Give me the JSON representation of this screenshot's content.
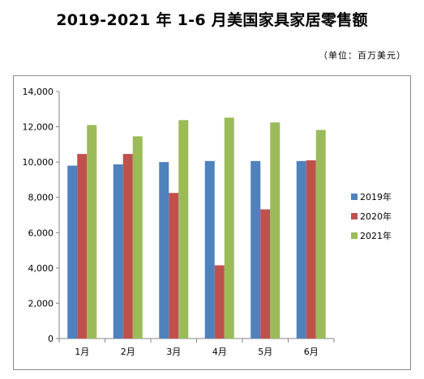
{
  "chart_data": {
    "type": "bar",
    "title": "2019-2021 年 1-6 月美国家具家居零售额",
    "unit_note": "（单位：百万美元）",
    "categories": [
      "1月",
      "2月",
      "3月",
      "4月",
      "5月",
      "6月"
    ],
    "series": [
      {
        "name": "2019年",
        "color": "#4F81BD",
        "values": [
          9800,
          9870,
          10000,
          10060,
          10060,
          10060
        ]
      },
      {
        "name": "2020年",
        "color": "#C0504D",
        "values": [
          10460,
          10460,
          8250,
          4150,
          7320,
          10100
        ]
      },
      {
        "name": "2021年",
        "color": "#9BBB59",
        "values": [
          12100,
          11460,
          12380,
          12520,
          12250,
          11820
        ]
      }
    ],
    "yticks": [
      "0",
      "2,000",
      "4,000",
      "6,000",
      "8,000",
      "10,000",
      "12,000",
      "14,000"
    ],
    "ylim": [
      0,
      14000
    ],
    "legend": "right",
    "grid": false
  }
}
